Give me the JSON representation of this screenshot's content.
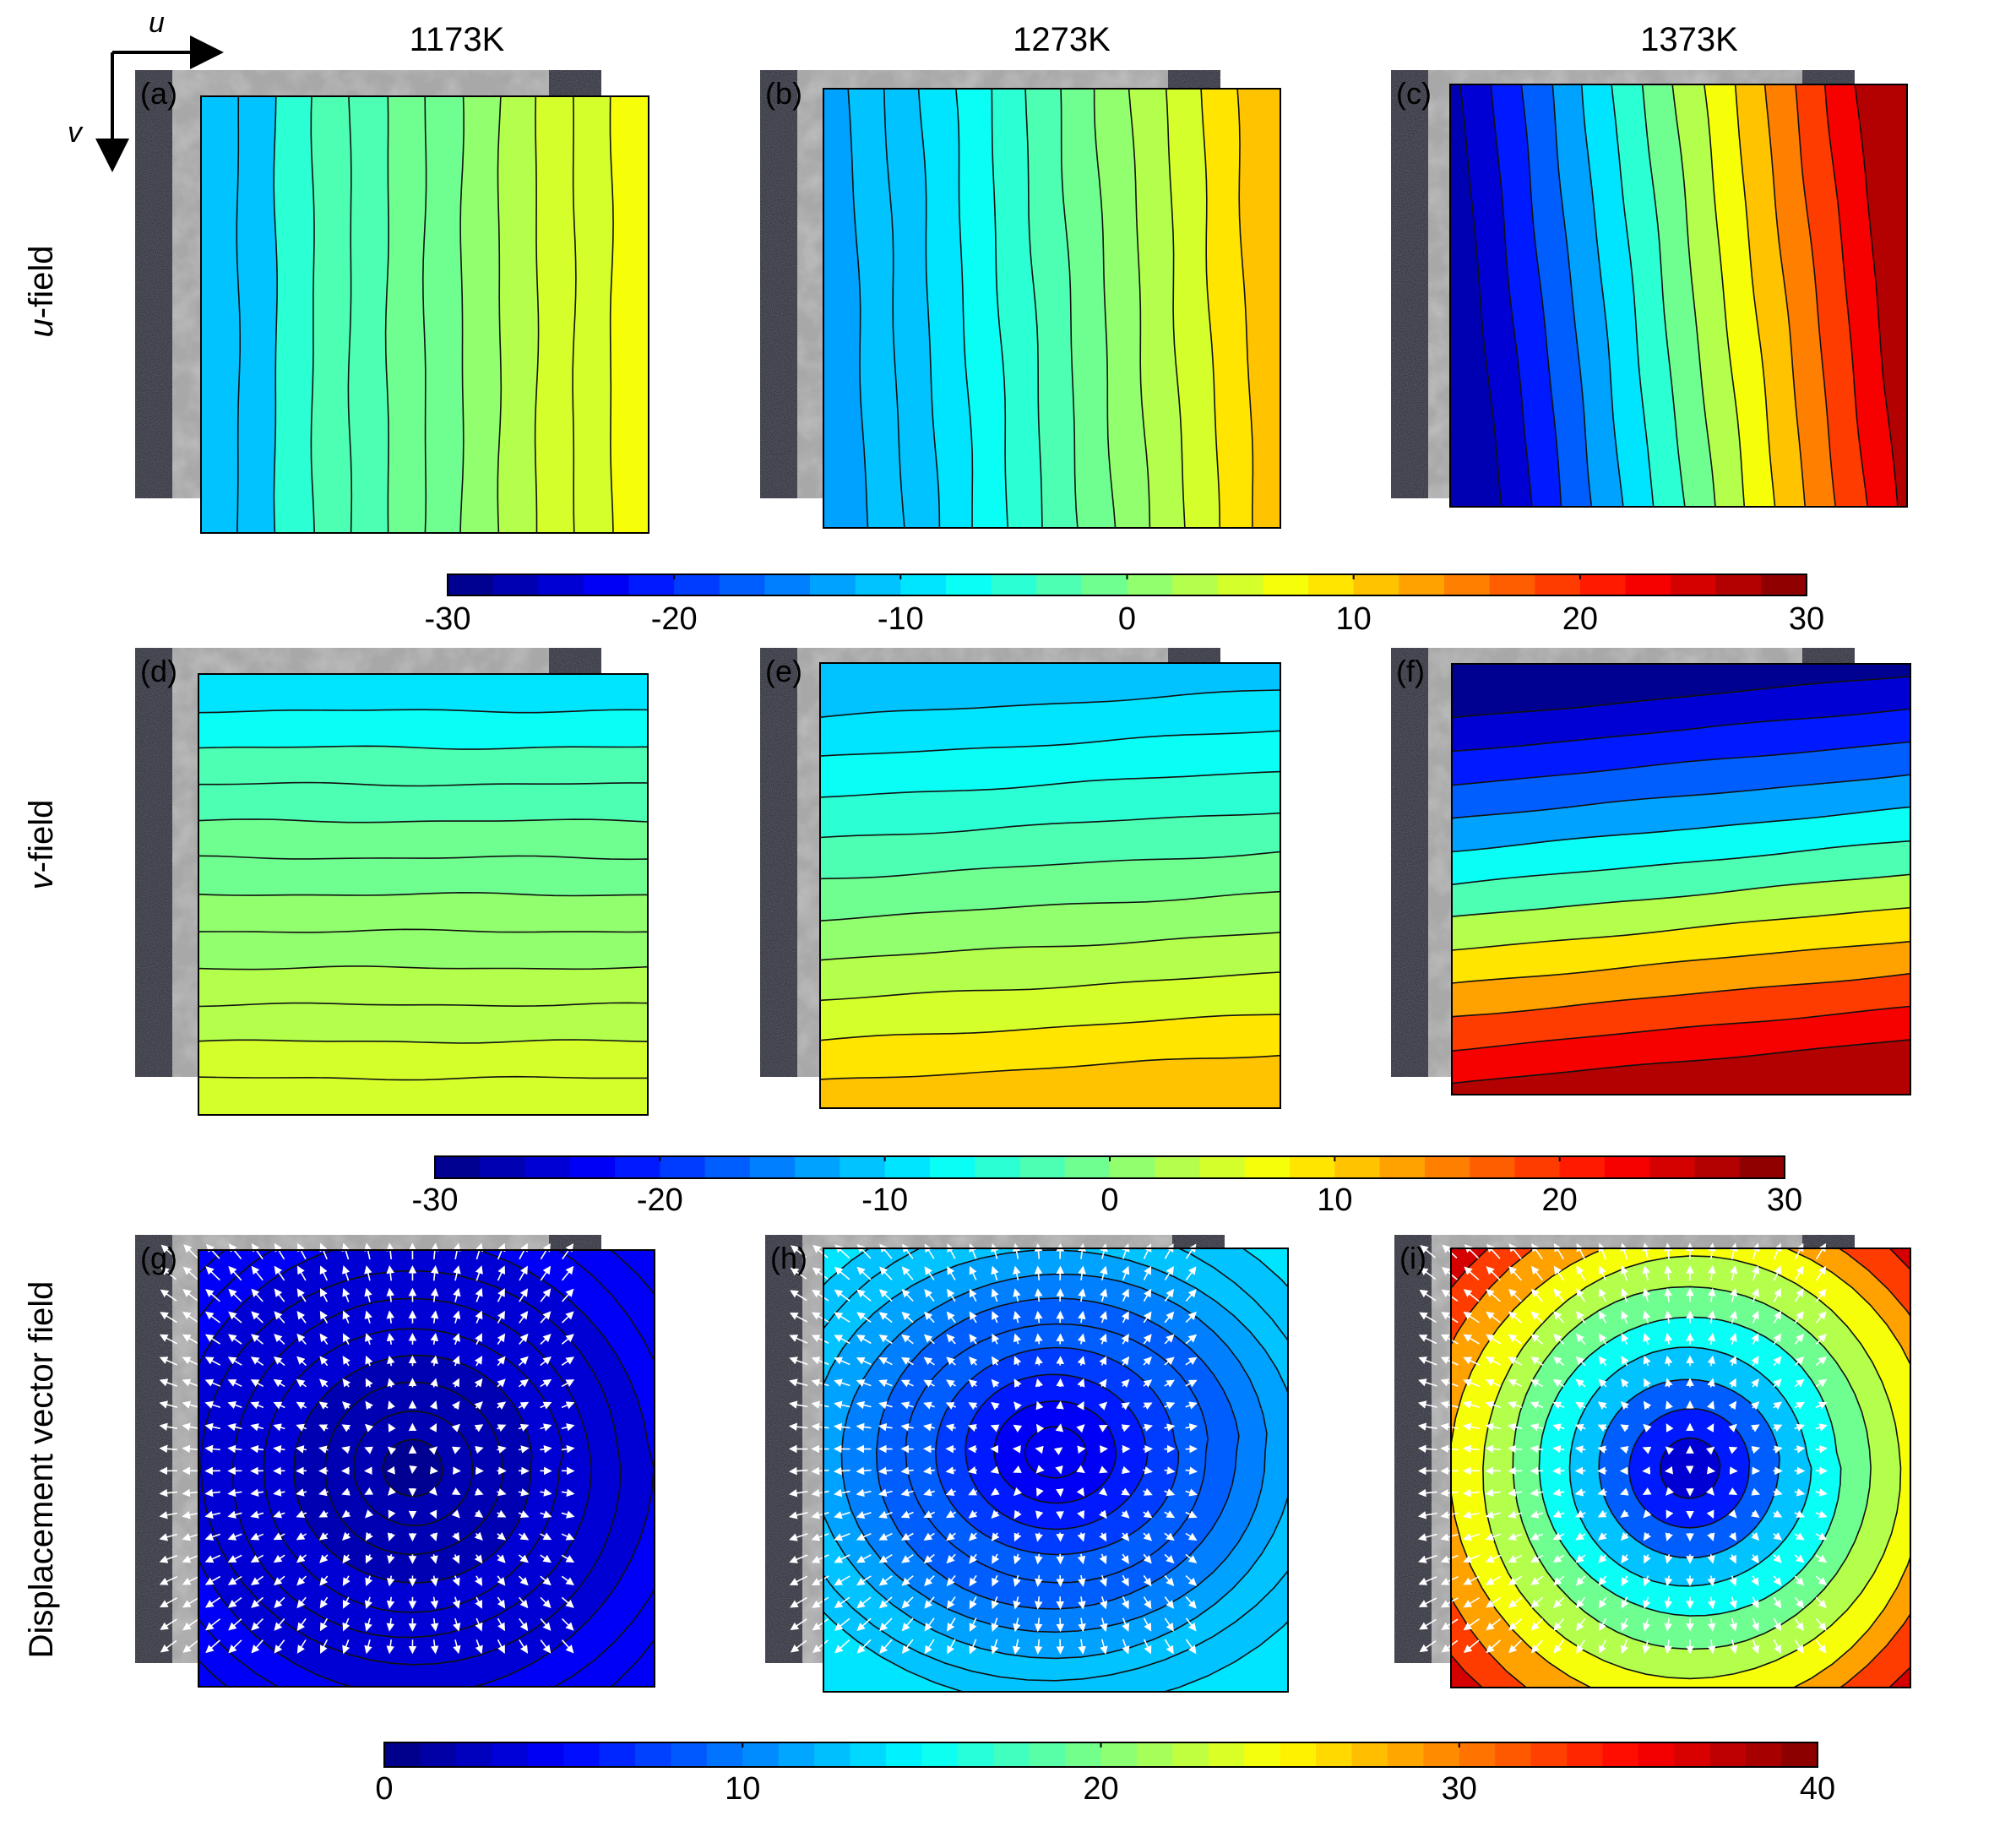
{
  "figure": {
    "axes_indicator": {
      "u_label": "u",
      "v_label": "v"
    },
    "column_headers": [
      "1173K",
      "1273K",
      "1373K"
    ],
    "row_labels": [
      {
        "italic": "u",
        "rest": "-field"
      },
      {
        "italic": "v",
        "rest": "-field"
      },
      {
        "italic": "",
        "rest": "Displacement vector field"
      }
    ],
    "panels": [
      {
        "id": "a",
        "label": "(a)",
        "field": "u",
        "type": "vertical",
        "values": [
          -11,
          -11,
          -5,
          -4,
          -3,
          -2,
          -1,
          1,
          3,
          4,
          5,
          6
        ],
        "skew": 0.0,
        "wobble": 0.45
      },
      {
        "id": "b",
        "label": "(b)",
        "field": "u",
        "type": "vertical",
        "values": [
          -13,
          -12,
          -11,
          -10,
          -8,
          -6,
          -4,
          -2,
          0,
          2,
          5,
          8,
          10
        ],
        "skew": 0.04,
        "wobble": 0.5
      },
      {
        "id": "c",
        "label": "(c)",
        "field": "u",
        "type": "vertical",
        "values": [
          -28,
          -25,
          -22,
          -18,
          -14,
          -10,
          -6,
          -2,
          2,
          6,
          10,
          14,
          18,
          22,
          26
        ],
        "skew": 0.09,
        "wobble": 0.3
      },
      {
        "id": "d",
        "label": "(d)",
        "field": "v",
        "type": "horizontal",
        "values": [
          -9,
          -7,
          -4,
          -3,
          -2,
          -1,
          0,
          1,
          2,
          3,
          4,
          5
        ],
        "skew": 0.0,
        "wobble": 0.45
      },
      {
        "id": "e",
        "label": "(e)",
        "field": "v",
        "type": "horizontal",
        "values": [
          -12,
          -10,
          -8,
          -5,
          -3,
          -1,
          1,
          3,
          5,
          8,
          10
        ],
        "skew": -0.06,
        "wobble": 0.4
      },
      {
        "id": "f",
        "label": "(f)",
        "field": "v",
        "type": "horizontal",
        "values": [
          -29,
          -25,
          -21,
          -17,
          -13,
          -8,
          -4,
          2,
          8,
          13,
          18,
          23,
          27
        ],
        "skew": -0.1,
        "wobble": 0.25
      },
      {
        "id": "g",
        "label": "(g)",
        "field": "magnitude",
        "type": "radial",
        "values": [
          4.8,
          4.5,
          4.2,
          3.9,
          3.6,
          3.2,
          2.8,
          2.4,
          2.0,
          1.6,
          1.2
        ],
        "center": [
          0.47,
          0.5
        ],
        "aspect": [
          1.0,
          0.55
        ]
      },
      {
        "id": "h",
        "label": "(h)",
        "field": "magnitude",
        "type": "radial",
        "values": [
          14,
          13,
          12,
          11,
          10,
          9,
          8,
          7,
          6,
          5,
          4
        ],
        "center": [
          0.5,
          0.46
        ],
        "aspect": [
          1.0,
          0.85
        ]
      },
      {
        "id": "i",
        "label": "(i)",
        "field": "magnitude",
        "type": "radial",
        "values": [
          37,
          33,
          29,
          25,
          22,
          19,
          15.5,
          12,
          9,
          6,
          3
        ],
        "center": [
          0.52,
          0.5
        ],
        "aspect": [
          1.0,
          1.0
        ]
      }
    ],
    "colorbars": [
      {
        "id": "uv-top",
        "min": -30,
        "max": 30,
        "ticks": [
          "-30",
          "-20",
          "-10",
          "0",
          "10",
          "20",
          "30"
        ]
      },
      {
        "id": "uv-mid",
        "min": -30,
        "max": 30,
        "ticks": [
          "-30",
          "-20",
          "-10",
          "0",
          "10",
          "20",
          "30"
        ]
      },
      {
        "id": "mag",
        "min": 0,
        "max": 40,
        "ticks": [
          "0",
          "10",
          "20",
          "30",
          "40"
        ]
      }
    ],
    "colors": {
      "background_dark": "#23242e",
      "specimen_gray": "#a8a8a8",
      "contour_line": "#111111",
      "vector_arrow": "#ffffff"
    }
  }
}
